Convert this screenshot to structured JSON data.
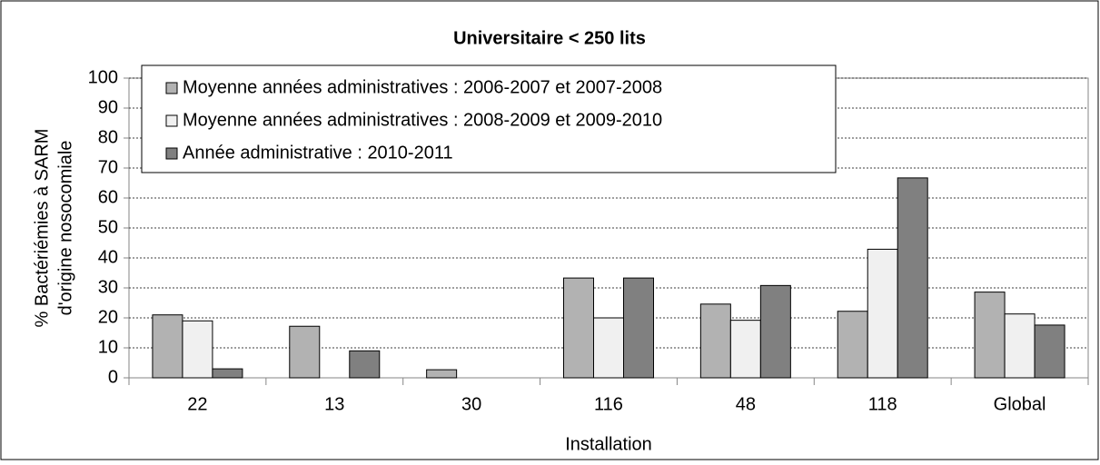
{
  "chart_data": {
    "type": "bar",
    "title": "Universitaire < 250 lits",
    "x_label": "Installation",
    "y_label": [
      "% Bactériémies à SARM",
      "d'origine nosocomiale"
    ],
    "categories": [
      "22",
      "13",
      "30",
      "116",
      "48",
      "118",
      "Global"
    ],
    "series": [
      {
        "name": "Moyenne années administratives : 2006-2007 et 2007-2008",
        "color": "#b2b2b2",
        "values": [
          21,
          17.2,
          2.7,
          33.3,
          24.6,
          22.2,
          28.6
        ]
      },
      {
        "name": "Moyenne années administratives : 2008-2009 et 2009-2010",
        "color": "#f0f0f0",
        "values": [
          19,
          null,
          null,
          20,
          19.2,
          42.9,
          21.3
        ]
      },
      {
        "name": "Année administrative : 2010-2011",
        "color": "#808080",
        "values": [
          3,
          9,
          null,
          33.3,
          30.8,
          66.7,
          17.6
        ]
      }
    ],
    "ylim": [
      0,
      100
    ],
    "yticks": [
      0,
      10,
      20,
      30,
      40,
      50,
      60,
      70,
      80,
      90,
      100
    ],
    "grid": true,
    "legend": "upper left"
  }
}
